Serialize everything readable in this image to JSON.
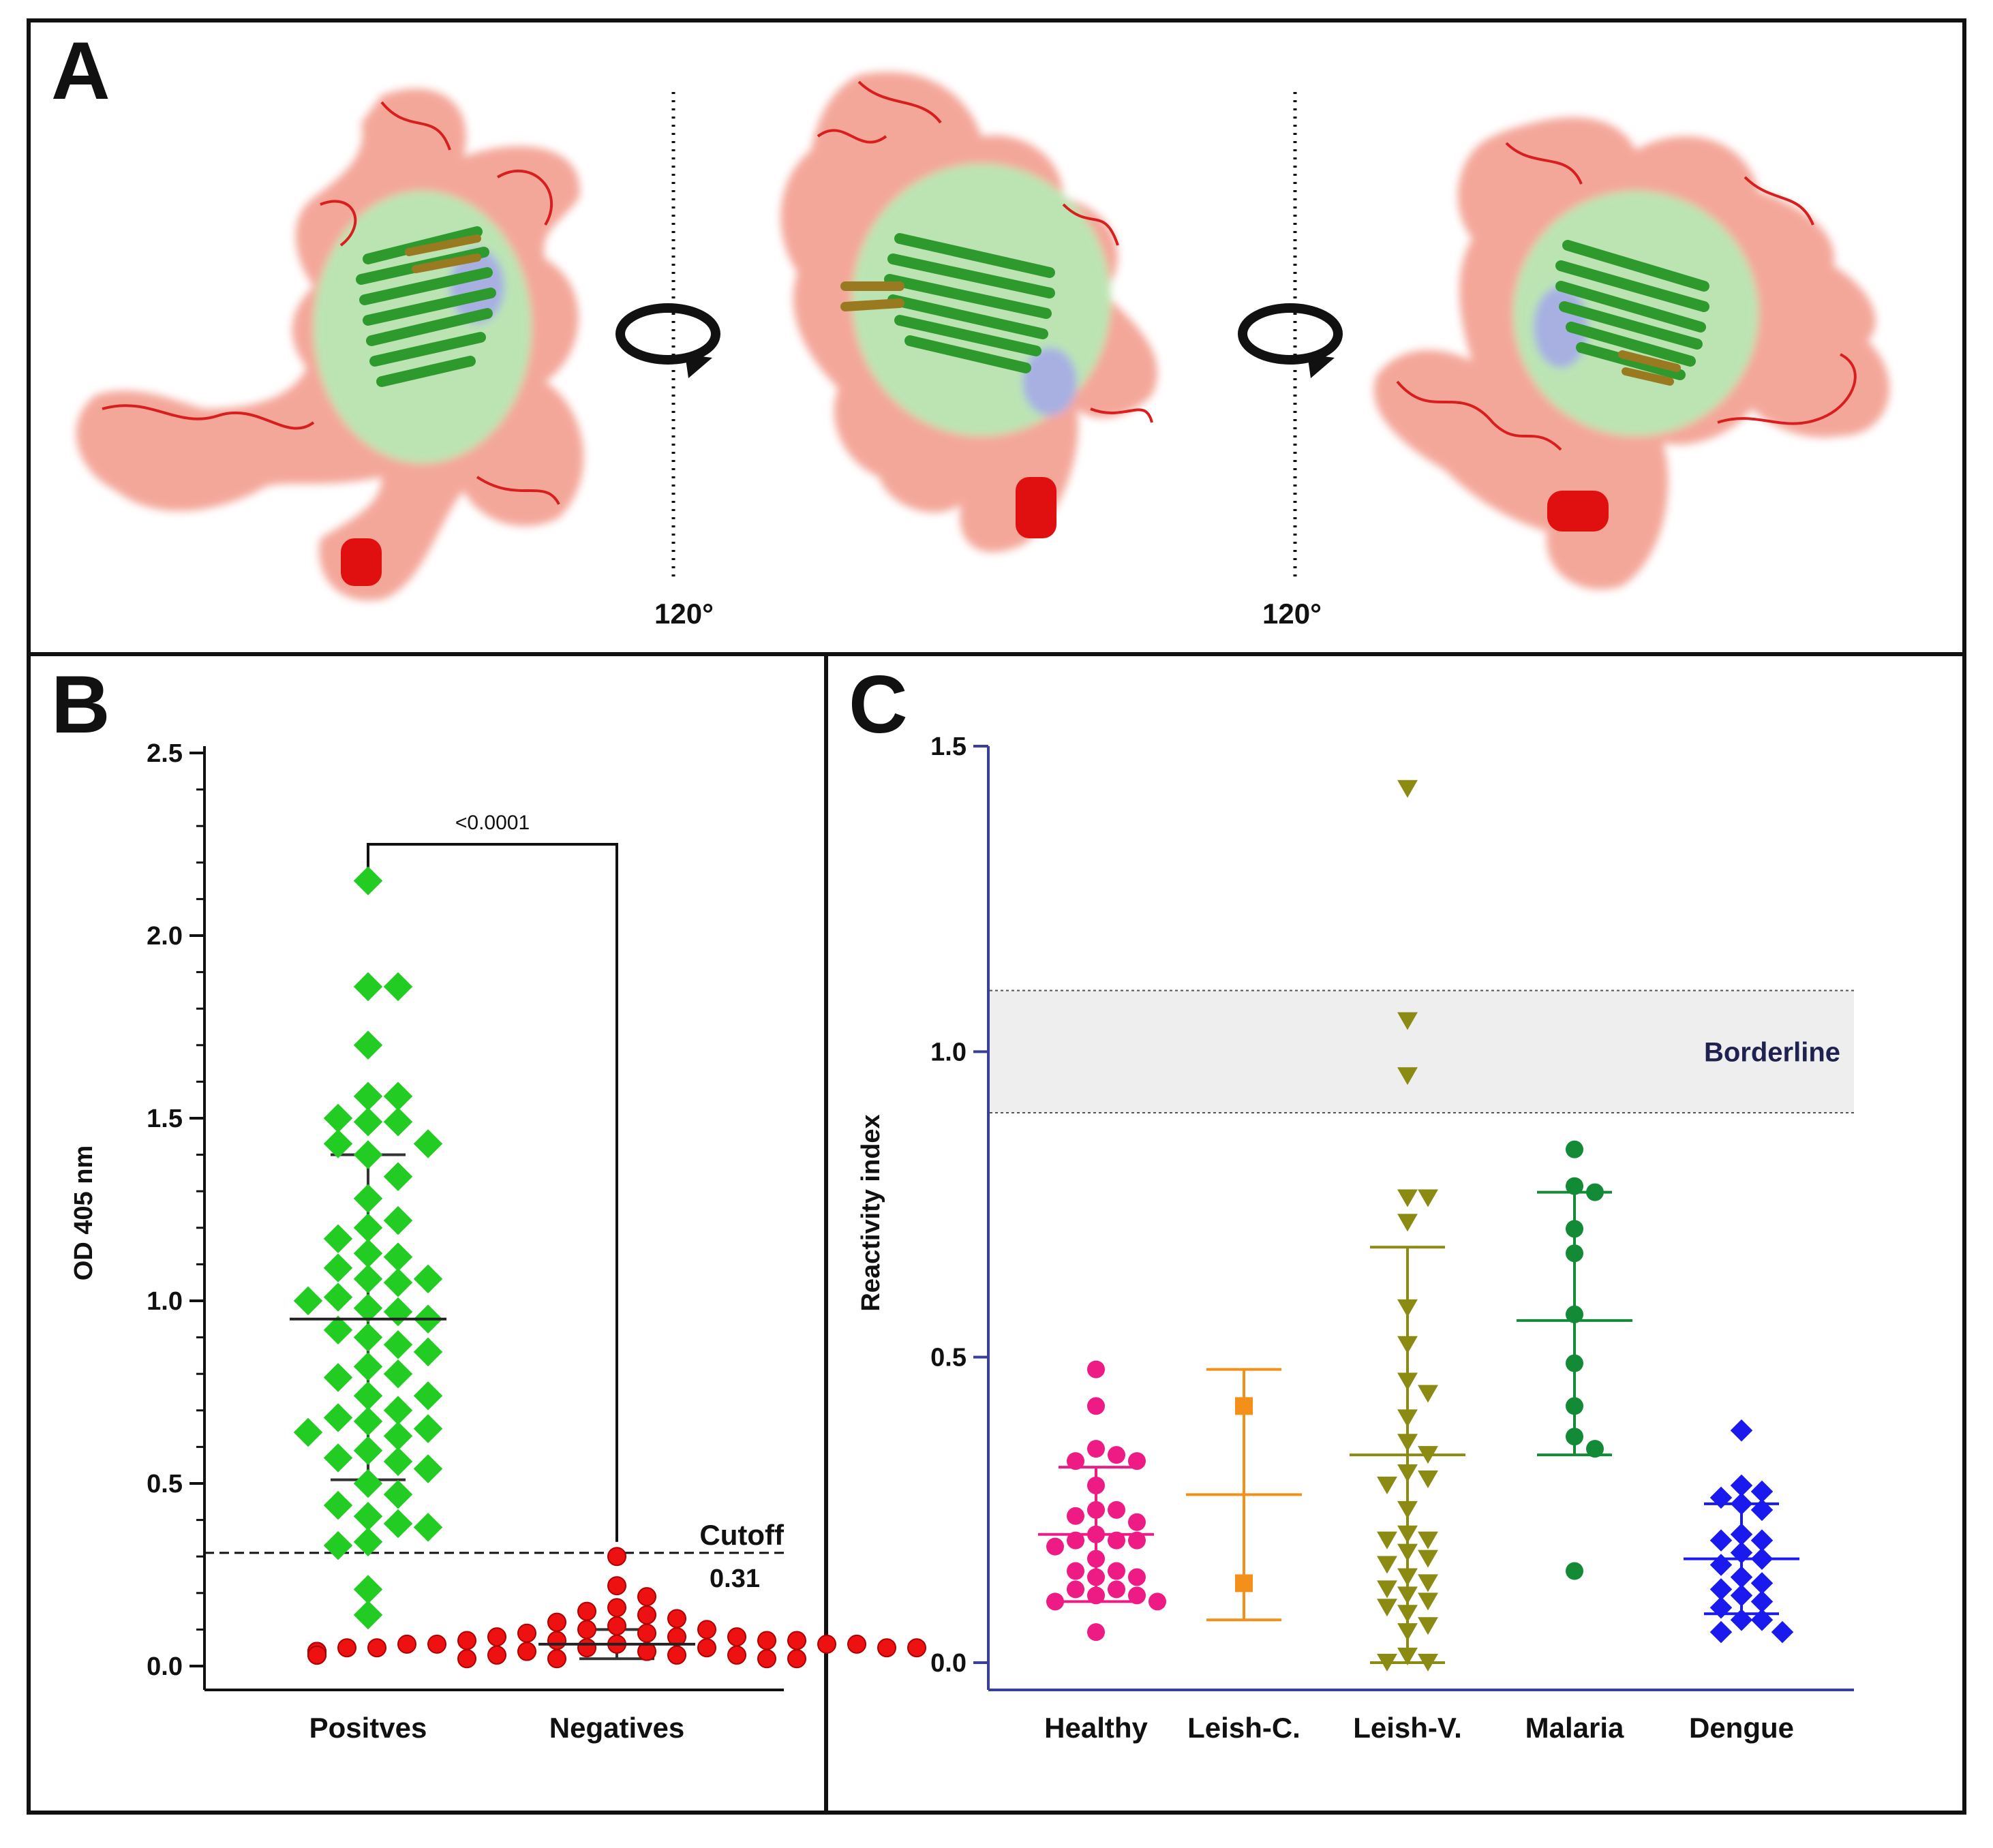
{
  "panels": {
    "a": {
      "letter": "A",
      "rotation_labels": [
        "120°",
        "120°"
      ],
      "colors": {
        "loop": "#e8503a",
        "loop_surface": "#f08a78",
        "core": "#2e9a2e",
        "core_surface": "#a6dc9a",
        "helix": "#e01010",
        "blue_patch": "#8a96d8"
      }
    },
    "b": {
      "letter": "B"
    },
    "c": {
      "letter": "C"
    }
  },
  "chart_data": [
    {
      "id": "B",
      "type": "scatter",
      "title": "",
      "xlabel": "",
      "ylabel": "OD 405 nm",
      "ylim": [
        0,
        2.5
      ],
      "yticks": [
        "0.0",
        "0.5",
        "1.0",
        "1.5",
        "2.0",
        "2.5"
      ],
      "categories": [
        "Positves",
        "Negatives"
      ],
      "cutoff": {
        "value": 0.31,
        "label": "Cutoff",
        "value_label": "0.31"
      },
      "significance": {
        "label": "<0.0001",
        "bracket_y": 2.25
      },
      "series": [
        {
          "name": "Positves",
          "marker": "diamond",
          "color": "#22cc22",
          "mean": 0.95,
          "sd_low": 0.51,
          "sd_high": 1.4,
          "values": [
            2.15,
            1.86,
            1.86,
            1.7,
            1.56,
            1.56,
            1.5,
            1.49,
            1.49,
            1.43,
            1.43,
            1.4,
            1.34,
            1.28,
            1.22,
            1.2,
            1.17,
            1.13,
            1.12,
            1.09,
            1.06,
            1.06,
            1.05,
            1.0,
            1.01,
            0.97,
            0.98,
            0.95,
            0.92,
            0.9,
            0.88,
            0.86,
            0.82,
            0.8,
            0.79,
            0.74,
            0.74,
            0.7,
            0.68,
            0.67,
            0.65,
            0.64,
            0.63,
            0.59,
            0.57,
            0.56,
            0.54,
            0.5,
            0.47,
            0.44,
            0.41,
            0.39,
            0.38,
            0.34,
            0.33,
            0.21,
            0.14
          ]
        },
        {
          "name": "Negatives",
          "marker": "circle",
          "color": "#ee1111",
          "mean": 0.06,
          "sd_low": 0.02,
          "sd_high": 0.1,
          "values": [
            0.3,
            0.22,
            0.19,
            0.16,
            0.15,
            0.14,
            0.13,
            0.12,
            0.11,
            0.1,
            0.1,
            0.09,
            0.09,
            0.08,
            0.08,
            0.08,
            0.07,
            0.07,
            0.07,
            0.07,
            0.06,
            0.06,
            0.06,
            0.06,
            0.06,
            0.05,
            0.05,
            0.05,
            0.05,
            0.05,
            0.05,
            0.04,
            0.04,
            0.04,
            0.04,
            0.04,
            0.04,
            0.04,
            0.03,
            0.03,
            0.03,
            0.03,
            0.03,
            0.03,
            0.02,
            0.02,
            0.02,
            0.02
          ]
        }
      ]
    },
    {
      "id": "C",
      "type": "scatter",
      "title": "",
      "xlabel": "",
      "ylabel": "Reactivity index",
      "ylim": [
        0,
        1.5
      ],
      "yticks": [
        "0.0",
        "0.5",
        "1.0",
        "1.5"
      ],
      "categories": [
        "Healthy",
        "Leish-C.",
        "Leish-V.",
        "Malaria",
        "Dengue"
      ],
      "borderline": {
        "low": 0.9,
        "high": 1.1,
        "label": "Borderline"
      },
      "series": [
        {
          "name": "Healthy",
          "marker": "circle",
          "color": "#ee1b84",
          "mean": 0.21,
          "sd_low": 0.1,
          "sd_high": 0.32,
          "values": [
            0.48,
            0.42,
            0.35,
            0.34,
            0.33,
            0.33,
            0.29,
            0.25,
            0.25,
            0.24,
            0.23,
            0.21,
            0.2,
            0.2,
            0.2,
            0.19,
            0.17,
            0.15,
            0.15,
            0.14,
            0.14,
            0.12,
            0.12,
            0.11,
            0.11,
            0.1,
            0.1,
            0.05
          ]
        },
        {
          "name": "Leish-C.",
          "marker": "square",
          "color": "#f39019",
          "mean": 0.275,
          "sd_low": 0.07,
          "sd_high": 0.48,
          "values": [
            0.42,
            0.13
          ]
        },
        {
          "name": "Leish-V.",
          "marker": "triangle-down",
          "color": "#8b8a12",
          "mean": 0.34,
          "sd_low": 0.0,
          "sd_high": 0.68,
          "values": [
            1.43,
            1.05,
            0.96,
            0.76,
            0.76,
            0.72,
            0.58,
            0.52,
            0.46,
            0.44,
            0.4,
            0.36,
            0.34,
            0.31,
            0.3,
            0.29,
            0.25,
            0.21,
            0.2,
            0.2,
            0.18,
            0.17,
            0.16,
            0.14,
            0.13,
            0.12,
            0.11,
            0.1,
            0.09,
            0.08,
            0.06,
            0.05,
            0.01,
            0.0,
            0.0
          ]
        },
        {
          "name": "Malaria",
          "marker": "circle",
          "color": "#138a36",
          "mean": 0.56,
          "sd_low": 0.34,
          "sd_high": 0.77,
          "values": [
            0.84,
            0.78,
            0.77,
            0.71,
            0.67,
            0.57,
            0.49,
            0.42,
            0.37,
            0.35,
            0.15
          ]
        },
        {
          "name": "Dengue",
          "marker": "diamond",
          "color": "#1a1aee",
          "mean": 0.17,
          "sd_low": 0.08,
          "sd_high": 0.26,
          "values": [
            0.38,
            0.29,
            0.28,
            0.27,
            0.26,
            0.25,
            0.21,
            0.2,
            0.2,
            0.18,
            0.17,
            0.16,
            0.14,
            0.13,
            0.12,
            0.11,
            0.1,
            0.09,
            0.07,
            0.07,
            0.05,
            0.05
          ]
        }
      ]
    }
  ]
}
